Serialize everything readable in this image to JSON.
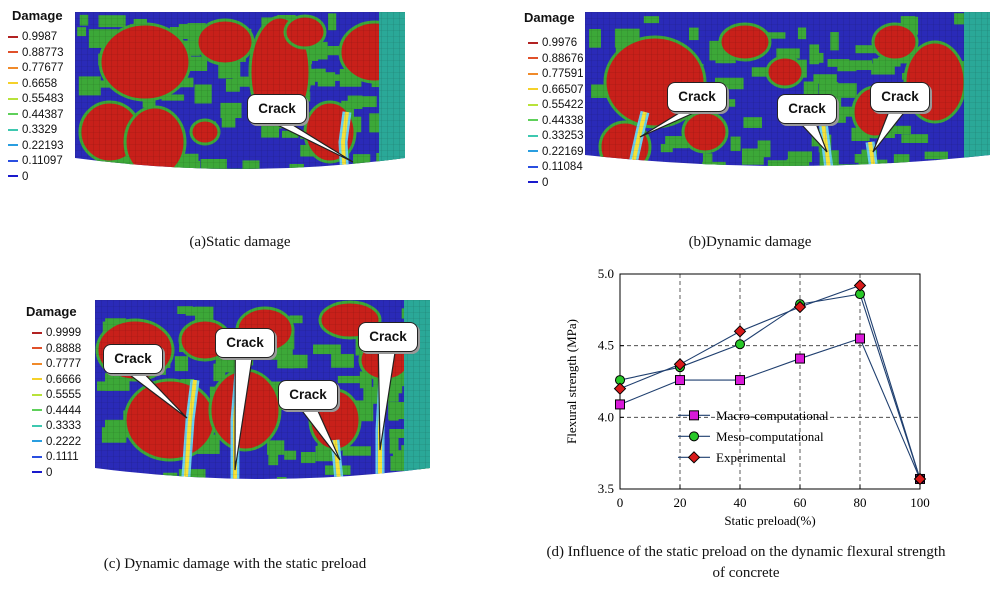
{
  "panels": [
    {
      "id": "a",
      "legend_title": "Damage",
      "legend_values": [
        "0.9987",
        "0.88773",
        "0.77677",
        "0.6658",
        "0.55483",
        "0.44387",
        "0.3329",
        "0.22193",
        "0.11097",
        "0"
      ],
      "callouts": [
        "Crack"
      ],
      "caption": "(a)Static damage"
    },
    {
      "id": "b",
      "legend_title": "Damage",
      "legend_values": [
        "0.9976",
        "0.88676",
        "0.77591",
        "0.66507",
        "0.55422",
        "0.44338",
        "0.33253",
        "0.22169",
        "0.11084",
        "0"
      ],
      "callouts": [
        "Crack",
        "Crack",
        "Crack"
      ],
      "caption": "(b)Dynamic damage"
    },
    {
      "id": "c",
      "legend_title": "Damage",
      "legend_values": [
        "0.9999",
        "0.8888",
        "0.7777",
        "0.6666",
        "0.5555",
        "0.4444",
        "0.3333",
        "0.2222",
        "0.1111",
        "0"
      ],
      "callouts": [
        "Crack",
        "Crack",
        "Crack",
        "Crack"
      ],
      "caption": "(c) Dynamic damage with the static preload"
    }
  ],
  "legend_colors": [
    "#b22222",
    "#e0502a",
    "#f08a2a",
    "#f5d12a",
    "#b8e23a",
    "#5ed05a",
    "#3ec8b0",
    "#2a9ee0",
    "#2a4ee0",
    "#1a1acc"
  ],
  "mesh_colors": {
    "aggregate": "#c8201a",
    "mortar": "#2a2ab8",
    "itz": "#3ca838",
    "crack": "#f5e23a",
    "edge": "#2aa898"
  },
  "chart_caption_line1": "(d) Influence of the static preload on the dynamic flexural strength",
  "chart_caption_line2": "of concrete",
  "chart_data": {
    "type": "line",
    "xlabel": "Static preload(%)",
    "ylabel": "Flexural strength (MPa)",
    "xlim": [
      0,
      100
    ],
    "ylim": [
      3.5,
      5.0
    ],
    "xticks": [
      0,
      20,
      40,
      60,
      80,
      100
    ],
    "yticks": [
      3.5,
      4.0,
      4.5,
      5.0
    ],
    "ytick_labels": [
      "3.5",
      "4.0",
      "4.5",
      "5.0"
    ],
    "grid": "dashed",
    "legend_position": "lower-left",
    "series": [
      {
        "name": "Macro-computational",
        "marker": "square",
        "color": "#d81ad8",
        "x": [
          0,
          20,
          40,
          60,
          80,
          100
        ],
        "values": [
          4.09,
          4.26,
          4.26,
          4.41,
          4.55,
          3.57
        ]
      },
      {
        "name": "Meso-computational",
        "marker": "circle",
        "color": "#28c828",
        "x": [
          0,
          20,
          40,
          60,
          80,
          100
        ],
        "values": [
          4.26,
          4.35,
          4.51,
          4.79,
          4.86,
          3.57
        ]
      },
      {
        "name": "Experimental",
        "marker": "diamond",
        "color": "#d81a1a",
        "x": [
          0,
          20,
          40,
          60,
          80,
          100
        ],
        "values": [
          4.2,
          4.37,
          4.6,
          4.77,
          4.92,
          3.57
        ]
      }
    ]
  }
}
